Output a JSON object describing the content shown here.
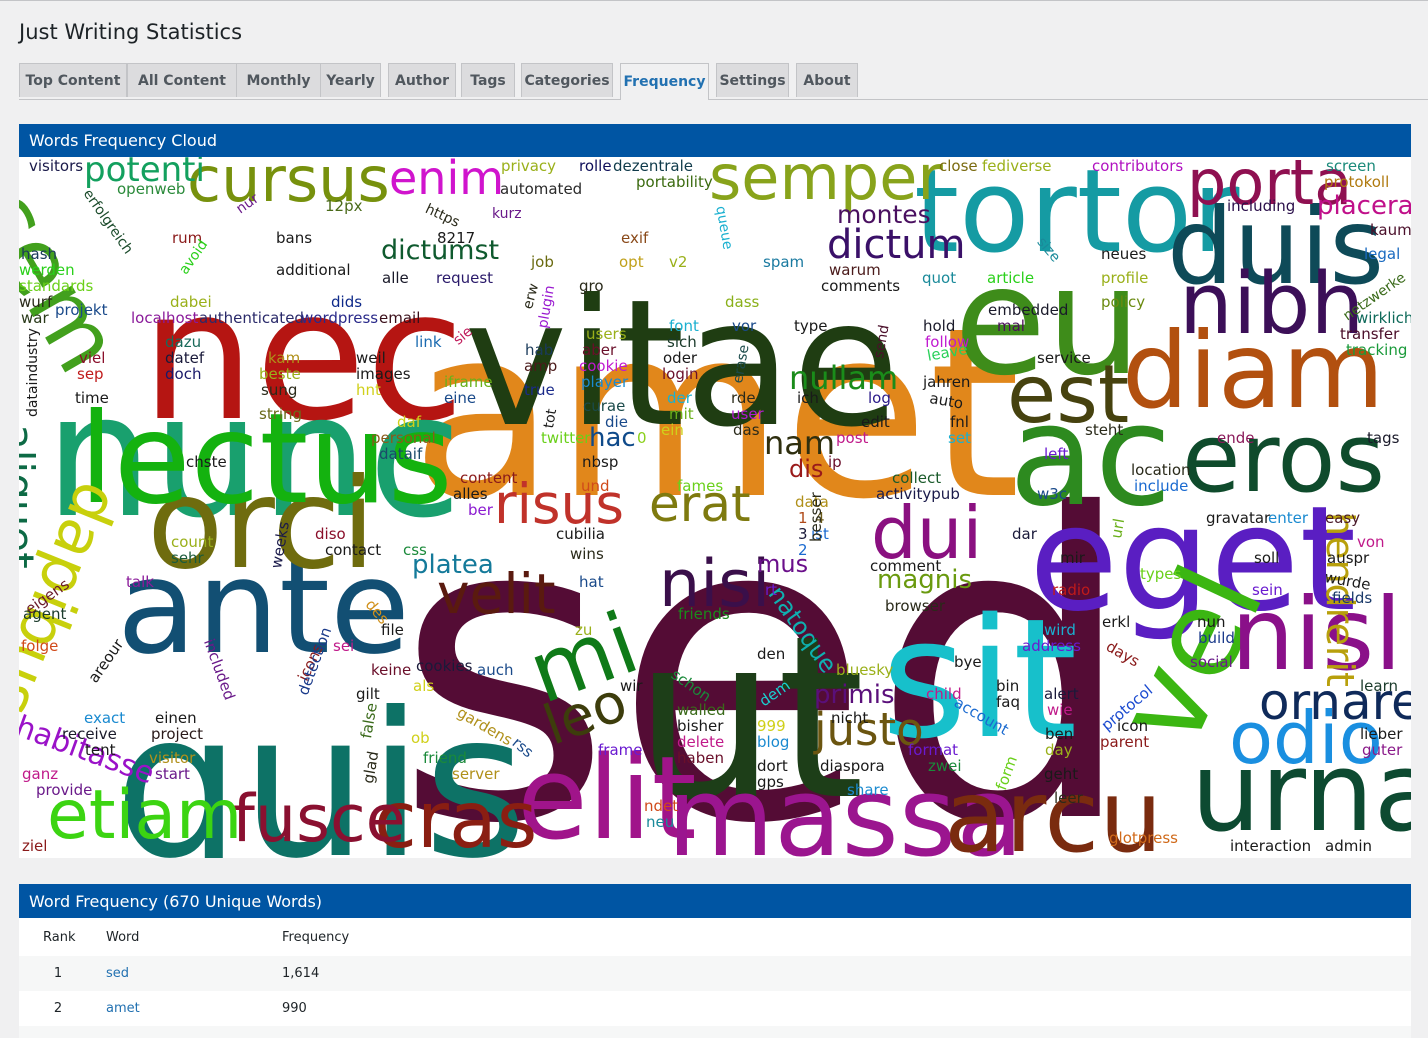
{
  "page": {
    "title": "Just Writing Statistics"
  },
  "tabs": [
    {
      "label": "Top Content"
    },
    {
      "label": "All Content"
    },
    {
      "label": "Monthly"
    },
    {
      "label": "Yearly"
    },
    {
      "label": "Author"
    },
    {
      "label": "Tags"
    },
    {
      "label": "Categories"
    },
    {
      "label": "Frequency",
      "active": true
    },
    {
      "label": "Settings"
    },
    {
      "label": "About"
    }
  ],
  "cloud_panel": {
    "title": "Words Frequency Cloud"
  },
  "cloud_words": [
    {
      "t": "sed",
      "c": "#540c35"
    },
    {
      "t": "amet",
      "c": "#e1871b"
    },
    {
      "t": "quis",
      "c": "#0d7266"
    },
    {
      "t": "vitae",
      "c": "#1f3d12"
    },
    {
      "t": "nec",
      "c": "#b51512"
    },
    {
      "t": "nunc",
      "c": "#19a06e"
    },
    {
      "t": "ut",
      "c": "#1d3e18"
    },
    {
      "t": "sit",
      "c": "#17c0cb"
    },
    {
      "t": "eu",
      "c": "#3e8c1a"
    },
    {
      "t": "ac",
      "c": "#2d8a1f"
    },
    {
      "t": "eget",
      "c": "#5a1ec2"
    },
    {
      "t": "ante",
      "c": "#124f73"
    },
    {
      "t": "orci",
      "c": "#6f6c0e"
    },
    {
      "t": "lectus",
      "c": "#14b20f"
    },
    {
      "t": "tortor",
      "c": "#159ba3"
    },
    {
      "t": "duis",
      "c": "#0e4a58"
    },
    {
      "t": "diam",
      "c": "#b2500f"
    },
    {
      "t": "elit",
      "c": "#a0148a"
    },
    {
      "t": "massa",
      "c": "#9b158f"
    },
    {
      "t": "arcu",
      "c": "#7a2b0f"
    },
    {
      "t": "urna",
      "c": "#0d4a31"
    },
    {
      "t": "vel",
      "c": "#3bb612"
    },
    {
      "t": "nisl",
      "c": "#8a1089"
    },
    {
      "t": "eros",
      "c": "#0f4b2c"
    },
    {
      "t": "cursus",
      "c": "#77910d"
    },
    {
      "t": "semper",
      "c": "#88a31b"
    },
    {
      "t": "sem",
      "c": "#42a01d"
    },
    {
      "t": "porta",
      "c": "#8f1051"
    },
    {
      "t": "nibh",
      "c": "#3c0f58"
    },
    {
      "t": "est",
      "c": "#46420f"
    },
    {
      "t": "cras",
      "c": "#8a1e12"
    },
    {
      "t": "fusce",
      "c": "#8a1030"
    },
    {
      "t": "etiam",
      "c": "#3cd412"
    },
    {
      "t": "odio",
      "c": "#1a8fe0"
    },
    {
      "t": "dapibus",
      "c": "#c8d00c"
    },
    {
      "t": "mi",
      "c": "#0f7a18"
    },
    {
      "t": "nisi",
      "c": "#3a0f4a"
    },
    {
      "t": "dui",
      "c": "#8a1080"
    },
    {
      "t": "velit",
      "c": "#5a1a0f"
    },
    {
      "t": "risus",
      "c": "#c0322a"
    },
    {
      "t": "erat",
      "c": "#7e7a0f"
    },
    {
      "t": "leo",
      "c": "#3d3d0c"
    },
    {
      "t": "justo",
      "c": "#6b5510"
    },
    {
      "t": "ornare",
      "c": "#0f2a5a"
    },
    {
      "t": "hendrerit",
      "c": "#b8a00c"
    },
    {
      "t": "aliquet",
      "c": "#0d6a45"
    },
    {
      "t": "habitasse",
      "c": "#9a12c8"
    },
    {
      "t": "enim",
      "c": "#d014cd"
    },
    {
      "t": "potenti",
      "c": "#13a05e"
    },
    {
      "t": "dictum",
      "c": "#3a1068"
    },
    {
      "t": "dictumst",
      "c": "#0f5a2e"
    },
    {
      "t": "nullam",
      "c": "#1a8c1a"
    },
    {
      "t": "placerat",
      "c": "#c0108a"
    },
    {
      "t": "montes",
      "c": "#4a1060"
    },
    {
      "t": "nam",
      "c": "#2f2f0f"
    },
    {
      "t": "hac",
      "c": "#0f4a8a"
    },
    {
      "t": "platea",
      "c": "#147a9a"
    },
    {
      "t": "primis",
      "c": "#5a0f7a"
    },
    {
      "t": "magnis",
      "c": "#6a9a0f"
    },
    {
      "t": "natoque",
      "c": "#0fb0b0"
    },
    {
      "t": "dis",
      "c": "#9a1a1a"
    },
    {
      "t": "mus",
      "c": "#6a0f8a"
    },
    {
      "t": "visitors",
      "c": "#1a1a4a"
    },
    {
      "t": "privacy",
      "c": "#9ab01a"
    },
    {
      "t": "rolle",
      "c": "#0f0f5a"
    },
    {
      "t": "dezentrale",
      "c": "#0f3a4a"
    },
    {
      "t": "close",
      "c": "#7a6a0f"
    },
    {
      "t": "fediverse",
      "c": "#9ab01a"
    },
    {
      "t": "contributors",
      "c": "#b012c0"
    },
    {
      "t": "screen",
      "c": "#1a8a7a"
    },
    {
      "t": "protokoll",
      "c": "#b07a0f"
    },
    {
      "t": "openweb",
      "c": "#2a8a3a"
    },
    {
      "t": "automated",
      "c": "#2a2a2a"
    },
    {
      "t": "portability",
      "c": "#3a6a0f"
    },
    {
      "t": "including",
      "c": "#2a0f4a"
    },
    {
      "t": "kaum",
      "c": "#4a0f2a"
    },
    {
      "t": "legal",
      "c": "#1a6ac0"
    },
    {
      "t": "neues",
      "c": "#1a1a1a"
    },
    {
      "t": "profile",
      "c": "#9ab01a"
    },
    {
      "t": "policy",
      "c": "#6a8a0f"
    },
    {
      "t": "transfer",
      "c": "#4a0f2a"
    },
    {
      "t": "wirklich",
      "c": "#0f6a5a"
    },
    {
      "t": "tracking",
      "c": "#1a9a3a"
    },
    {
      "t": "hash",
      "c": "#1a3a5a"
    },
    {
      "t": "werden",
      "c": "#2ad01a"
    },
    {
      "t": "standards",
      "c": "#6ad01a"
    },
    {
      "t": "wurf",
      "c": "#2a2a1a"
    },
    {
      "t": "war",
      "c": "#2a3a1a"
    },
    {
      "t": "projekt",
      "c": "#1a4a8a"
    },
    {
      "t": "dabei",
      "c": "#9ab01a"
    },
    {
      "t": "localhost",
      "c": "#8a1a9a"
    },
    {
      "t": "authenticated",
      "c": "#2a2a6a"
    },
    {
      "t": "wordpress",
      "c": "#2a2a8a"
    },
    {
      "t": "email",
      "c": "#3a0f1a"
    },
    {
      "t": "dids",
      "c": "#0f2a8a"
    },
    {
      "t": "bans",
      "c": "#1a1a1a"
    },
    {
      "t": "additional",
      "c": "#1a1a1a"
    },
    {
      "t": "rum",
      "c": "#8a1a1a"
    },
    {
      "t": "12px",
      "c": "#4a6a1a"
    },
    {
      "t": "8217",
      "c": "#1a1a1a"
    },
    {
      "t": "alle",
      "c": "#1a1a2a"
    },
    {
      "t": "request",
      "c": "#2a1a6a"
    },
    {
      "t": "job",
      "c": "#6a6a0f"
    },
    {
      "t": "exif",
      "c": "#8a4a1a"
    },
    {
      "t": "opt",
      "c": "#c0a01a"
    },
    {
      "t": "v2",
      "c": "#9ab01a"
    },
    {
      "t": "gro",
      "c": "#2a2a1a"
    },
    {
      "t": "spam",
      "c": "#1a7aa0"
    },
    {
      "t": "warum",
      "c": "#4a1a1a"
    },
    {
      "t": "comments",
      "c": "#1a1a1a"
    },
    {
      "t": "quot",
      "c": "#1a8a9a"
    },
    {
      "t": "article",
      "c": "#2ad01a"
    },
    {
      "t": "embedded",
      "c": "#1a1a2a"
    },
    {
      "t": "mal",
      "c": "#4a0f5a"
    },
    {
      "t": "dass",
      "c": "#8ab01a"
    },
    {
      "t": "users",
      "c": "#9ab01a"
    },
    {
      "t": "font",
      "c": "#1ab0d0"
    },
    {
      "t": "vor",
      "c": "#1a4a8a"
    },
    {
      "t": "type",
      "c": "#1a1a1a"
    },
    {
      "t": "hold",
      "c": "#1a1a2a"
    },
    {
      "t": "follow",
      "c": "#c01ad0"
    },
    {
      "t": "leave",
      "c": "#2ad05a"
    },
    {
      "t": "service",
      "c": "#1a1a1a"
    },
    {
      "t": "jahren",
      "c": "#1a1a1a"
    },
    {
      "t": "auto",
      "c": "#1a1a1a"
    },
    {
      "t": "viel",
      "c": "#8a0f2a"
    },
    {
      "t": "sep",
      "c": "#c01a1a"
    },
    {
      "t": "time",
      "c": "#1a1a1a"
    },
    {
      "t": "dazu",
      "c": "#1a6a5a"
    },
    {
      "t": "datef",
      "c": "#1a1a3a"
    },
    {
      "t": "doch",
      "c": "#1a1a6a"
    },
    {
      "t": "kam",
      "c": "#b0901a"
    },
    {
      "t": "beste",
      "c": "#9ab01a"
    },
    {
      "t": "sung",
      "c": "#2a2a1a"
    },
    {
      "t": "string",
      "c": "#6a6a1a"
    },
    {
      "t": "weil",
      "c": "#1a1a1a"
    },
    {
      "t": "images",
      "c": "#1a1a1a"
    },
    {
      "t": "hnt",
      "c": "#d0d01a"
    },
    {
      "t": "link",
      "c": "#1a6ab0"
    },
    {
      "t": "iframe",
      "c": "#6ab01a"
    },
    {
      "t": "eine",
      "c": "#1a4a8a"
    },
    {
      "t": "hab",
      "c": "#1a3a5a"
    },
    {
      "t": "amp",
      "c": "#4a1a1a"
    },
    {
      "t": "true",
      "c": "#1a2a8a"
    },
    {
      "t": "aber",
      "c": "#6a0f2a"
    },
    {
      "t": "cookie",
      "c": "#c01ad0"
    },
    {
      "t": "player",
      "c": "#1a8ad0"
    },
    {
      "t": "sich",
      "c": "#1a3a2a"
    },
    {
      "t": "oder",
      "c": "#1a1a1a"
    },
    {
      "t": "login",
      "c": "#6a0f2a"
    },
    {
      "t": "curae",
      "c": "#1a4a4a"
    },
    {
      "t": "die",
      "c": "#1a4a8a"
    },
    {
      "t": "der",
      "c": "#1ab0d0"
    },
    {
      "t": "mit",
      "c": "#6ab01a"
    },
    {
      "t": "ein",
      "c": "#d0d01a"
    },
    {
      "t": "rde",
      "c": "#2a2a1a"
    },
    {
      "t": "user",
      "c": "#b01ad0"
    },
    {
      "t": "das",
      "c": "#2a2a1a"
    },
    {
      "t": "ich",
      "c": "#1a1a1a"
    },
    {
      "t": "log",
      "c": "#2a1a8a"
    },
    {
      "t": "edit",
      "c": "#1a1a1a"
    },
    {
      "t": "fnl",
      "c": "#1a1a1a"
    },
    {
      "t": "set",
      "c": "#1ab0d0"
    },
    {
      "t": "steht",
      "c": "#2a2a1a"
    },
    {
      "t": "ende",
      "c": "#8a1a5a"
    },
    {
      "t": "tags",
      "c": "#1a1a2a"
    },
    {
      "t": "chste",
      "c": "#1a1a1a"
    },
    {
      "t": "personal",
      "c": "#8a5a1a"
    },
    {
      "t": "dataif",
      "c": "#1a4a6a"
    },
    {
      "t": "twitter",
      "c": "#6ad01a"
    },
    {
      "t": "0",
      "c": "#8ad01a"
    },
    {
      "t": "post",
      "c": "#c01a8a"
    },
    {
      "t": "ip",
      "c": "#6a0f2a"
    },
    {
      "t": "collect",
      "c": "#1a5a2a"
    },
    {
      "t": "activitypub",
      "c": "#1a1a4a"
    },
    {
      "t": "left",
      "c": "#6a1ad0"
    },
    {
      "t": "w3c",
      "c": "#1a4a8a"
    },
    {
      "t": "location",
      "c": "#2a2a1a"
    },
    {
      "t": "include",
      "c": "#1a6ad0"
    },
    {
      "t": "content",
      "c": "#8a1a1a"
    },
    {
      "t": "alles",
      "c": "#1a1a1a"
    },
    {
      "t": "ber",
      "c": "#8a1ad0"
    },
    {
      "t": "und",
      "c": "#d04a1a"
    },
    {
      "t": "nbsp",
      "c": "#1a1a1a"
    },
    {
      "t": "fames",
      "c": "#6ad01a"
    },
    {
      "t": "data",
      "c": "#b0901a"
    },
    {
      "t": "1",
      "c": "#b04a1a"
    },
    {
      "t": "4",
      "c": "#6a5a1a"
    },
    {
      "t": "3",
      "c": "#1a1a3a"
    },
    {
      "t": "ist",
      "c": "#1a6ad0"
    },
    {
      "t": "2",
      "c": "#1a6ad0"
    },
    {
      "t": "besser",
      "c": "#2a2a1a"
    },
    {
      "t": "comment",
      "c": "#1a1a1a"
    },
    {
      "t": "browser",
      "c": "#2a2a1a"
    },
    {
      "t": "dar",
      "c": "#1a1a3a"
    },
    {
      "t": "mir",
      "c": "#1a1a1a"
    },
    {
      "t": "radio",
      "c": "#c01a1a"
    },
    {
      "t": "gravatar",
      "c": "#1a1a1a"
    },
    {
      "t": "enter",
      "c": "#1a8ad0"
    },
    {
      "t": "easy",
      "c": "#4a1a2a"
    },
    {
      "t": "soll",
      "c": "#1a1a1a"
    },
    {
      "t": "auspr",
      "c": "#1a1a1a"
    },
    {
      "t": "wurde",
      "c": "#1a1a1a"
    },
    {
      "t": "sein",
      "c": "#6a1ad0"
    },
    {
      "t": "von",
      "c": "#c01a8a"
    },
    {
      "t": "fields",
      "c": "#1a3a6a"
    },
    {
      "t": "types",
      "c": "#6ad01a"
    },
    {
      "t": "url",
      "c": "#6ab01a"
    },
    {
      "t": "count",
      "c": "#9ab01a"
    },
    {
      "t": "sehr",
      "c": "#1a5a3a"
    },
    {
      "t": "weeks",
      "c": "#1a1a4a"
    },
    {
      "t": "diso",
      "c": "#8a0f2a"
    },
    {
      "t": "contact",
      "c": "#1a1a1a"
    },
    {
      "t": "css",
      "c": "#1a8a3a"
    },
    {
      "t": "cubilia",
      "c": "#1a1a1a"
    },
    {
      "t": "wins",
      "c": "#2a2a1a"
    },
    {
      "t": "hat",
      "c": "#1a4a8a"
    },
    {
      "t": "rt",
      "c": "#6a1ad0"
    },
    {
      "t": "friends",
      "c": "#1a8a1a"
    },
    {
      "t": "eigens",
      "c": "#6a1a2a"
    },
    {
      "t": "talk",
      "c": "#8a1a9a"
    },
    {
      "t": "agent",
      "c": "#1a3a2a"
    },
    {
      "t": "des",
      "c": "#d0901a"
    },
    {
      "t": "file",
      "c": "#1a1a1a"
    },
    {
      "t": "zu",
      "c": "#9ab01a"
    },
    {
      "t": "folge",
      "c": "#d04a1a"
    },
    {
      "t": "sei",
      "c": "#c01a8a"
    },
    {
      "t": "den",
      "c": "#1a1a1a"
    },
    {
      "t": "nun",
      "c": "#1a1a1a"
    },
    {
      "t": "build",
      "c": "#1a3a8a"
    },
    {
      "t": "wird",
      "c": "#1ab0d0"
    },
    {
      "t": "erkl",
      "c": "#1a1a1a"
    },
    {
      "t": "address",
      "c": "#6a1ad0"
    },
    {
      "t": "days",
      "c": "#8a1a1a"
    },
    {
      "t": "social",
      "c": "#6a1a8a"
    },
    {
      "t": "keine",
      "c": "#6a0f2a"
    },
    {
      "t": "cookies",
      "c": "#1a1a3a"
    },
    {
      "t": "auch",
      "c": "#1a4a8a"
    },
    {
      "t": "included",
      "c": "#6a1a8a"
    },
    {
      "t": "areour",
      "c": "#1a1a1a"
    },
    {
      "t": "icons",
      "c": "#8a1a1a"
    },
    {
      "t": "gilt",
      "c": "#1a1a1a"
    },
    {
      "t": "als",
      "c": "#d0d01a"
    },
    {
      "t": "schon",
      "c": "#1a8a3a"
    },
    {
      "t": "wir",
      "c": "#1a1a1a"
    },
    {
      "t": "bluesky",
      "c": "#9ab01a"
    },
    {
      "t": "bye",
      "c": "#1a1a1a"
    },
    {
      "t": "bin",
      "c": "#1a1a1a"
    },
    {
      "t": "faq",
      "c": "#1a1a1a"
    },
    {
      "t": "learn",
      "c": "#1a3a2a"
    },
    {
      "t": "exact",
      "c": "#1a8ad0"
    },
    {
      "t": "receive",
      "c": "#1a1a2a"
    },
    {
      "t": "tent",
      "c": "#1a1a1a"
    },
    {
      "t": "einen",
      "c": "#1a1a1a"
    },
    {
      "t": "project",
      "c": "#2a1a1a"
    },
    {
      "t": "visitor",
      "c": "#b0901a"
    },
    {
      "t": "start",
      "c": "#6a1a8a"
    },
    {
      "t": "ganz",
      "c": "#c01a8a"
    },
    {
      "t": "provide",
      "c": "#6a1a8a"
    },
    {
      "t": "detection",
      "c": "#1a3a8a"
    },
    {
      "t": "false",
      "c": "#3a6a1a"
    },
    {
      "t": "glad",
      "c": "#2a2a1a"
    },
    {
      "t": "ob",
      "c": "#d0d01a"
    },
    {
      "t": "friend",
      "c": "#1a8a3a"
    },
    {
      "t": "server",
      "c": "#b0901a"
    },
    {
      "t": "gardens",
      "c": "#b0901a"
    },
    {
      "t": "rss",
      "c": "#1a4a8a"
    },
    {
      "t": "frame",
      "c": "#6a1ad0"
    },
    {
      "t": "walled",
      "c": "#3a6a1a"
    },
    {
      "t": "bisher",
      "c": "#1a1a1a"
    },
    {
      "t": "delete",
      "c": "#c01a8a"
    },
    {
      "t": "haben",
      "c": "#6a0f2a"
    },
    {
      "t": "dem",
      "c": "#1ad0d0"
    },
    {
      "t": "999",
      "c": "#d0d01a"
    },
    {
      "t": "blog",
      "c": "#1a8ad0"
    },
    {
      "t": "dort",
      "c": "#1a1a1a"
    },
    {
      "t": "gps",
      "c": "#1a1a1a"
    },
    {
      "t": "nicht",
      "c": "#1a1a1a"
    },
    {
      "t": "diaspora",
      "c": "#1a1a1a"
    },
    {
      "t": "share",
      "c": "#1a8ad0"
    },
    {
      "t": "format",
      "c": "#6a1ad0"
    },
    {
      "t": "zwei",
      "c": "#1a8a3a"
    },
    {
      "t": "child",
      "c": "#c01a8a"
    },
    {
      "t": "account",
      "c": "#1a6ad0"
    },
    {
      "t": "form",
      "c": "#6ad01a"
    },
    {
      "t": "geht",
      "c": "#1a1a1a"
    },
    {
      "t": "leer",
      "c": "#2a2a1a"
    },
    {
      "t": "alert",
      "c": "#1a1a3a"
    },
    {
      "t": "wie",
      "c": "#c01a8a"
    },
    {
      "t": "ben",
      "c": "#1a1a1a"
    },
    {
      "t": "day",
      "c": "#9ab01a"
    },
    {
      "t": "protocol",
      "c": "#1a4ad0"
    },
    {
      "t": "icon",
      "c": "#1a1a1a"
    },
    {
      "t": "parent",
      "c": "#8a1a1a"
    },
    {
      "t": "lieber",
      "c": "#1a1a1a"
    },
    {
      "t": "guter",
      "c": "#8a1a8a"
    },
    {
      "t": "ndet",
      "c": "#d04a1a"
    },
    {
      "t": "neu",
      "c": "#1a8a9a"
    },
    {
      "t": "glotpress",
      "c": "#d06a1a"
    },
    {
      "t": "interaction",
      "c": "#1a1a1a"
    },
    {
      "t": "admin",
      "c": "#1a1a1a"
    },
    {
      "t": "ziel",
      "c": "#8a1a1a"
    },
    {
      "t": "erfolgreich",
      "c": "#1a4a2a"
    },
    {
      "t": "nur",
      "c": "#6a1a8a"
    },
    {
      "t": "avoid",
      "c": "#2ad01a"
    },
    {
      "t": "https",
      "c": "#2a2a1a"
    },
    {
      "t": "kurz",
      "c": "#6a1a8a"
    },
    {
      "t": "queue",
      "c": "#1ab0d0"
    },
    {
      "t": "size",
      "c": "#1a8a9a"
    },
    {
      "t": "netzwerke",
      "c": "#3a6a1a"
    },
    {
      "t": "erw",
      "c": "#2a2a1a"
    },
    {
      "t": "plugin",
      "c": "#9a1ad0"
    },
    {
      "t": "sie",
      "c": "#c01a5a"
    },
    {
      "t": "tot",
      "c": "#1a1a1a"
    },
    {
      "t": "send",
      "c": "#4a0f2a"
    },
    {
      "t": "erase",
      "c": "#1a4a4a"
    },
    {
      "t": "dataindustry",
      "c": "#1a1a1a"
    },
    {
      "t": "daf",
      "c": "#d0d01a"
    }
  ],
  "table_panel": {
    "title": "Word Frequency (670 Unique Words)"
  },
  "table": {
    "headers": {
      "rank": "Rank",
      "word": "Word",
      "frequency": "Frequency"
    },
    "rows": [
      {
        "rank": "1",
        "word": "sed",
        "frequency": "1,614"
      },
      {
        "rank": "2",
        "word": "amet",
        "frequency": "990"
      }
    ]
  }
}
